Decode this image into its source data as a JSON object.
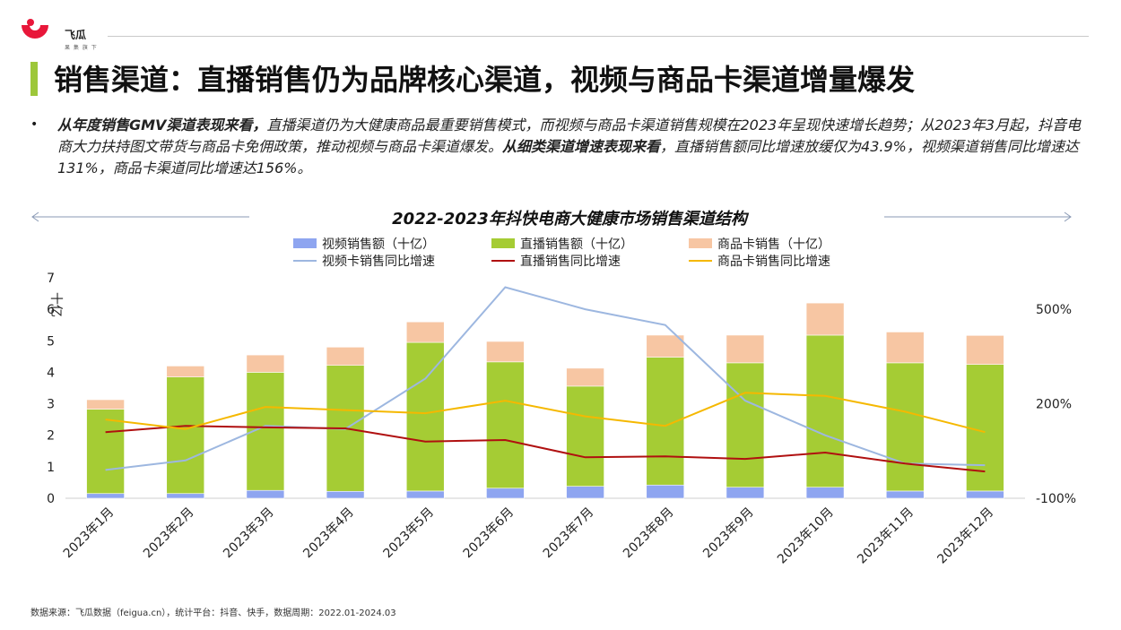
{
  "brand": {
    "name": "飞瓜",
    "sub": "果 集 旗 下"
  },
  "slide_title": "销售渠道：直播销售仍为品牌核心渠道，视频与商品卡渠道增量爆发",
  "bullet": "•",
  "paragraph": {
    "part1_bold": "从年度销售GMV渠道表现来看，",
    "part1": "直播渠道仍为大健康商品最重要销售模式，而视频与商品卡渠道销售规模在2023年呈现快速增长趋势；从2023年3月起，抖音电商大力扶持图文带货与商品卡免佣政策，推动视频与商品卡渠道爆发。",
    "part2_bold": "从细类渠道增速表现来看",
    "part2": "，直播销售额同比增速放缓仅为43.9%，视频渠道销售同比增速达131%，商品卡渠道同比增速达156%。"
  },
  "chart_data": {
    "type": "bar",
    "title": "2022-2023年抖快电商大健康市场销售渠道结构",
    "ylabel": "十亿",
    "ylim": [
      0,
      7
    ],
    "y_ticks": [
      "0",
      "1",
      "2",
      "3",
      "4",
      "5",
      "6",
      "7"
    ],
    "y2lim": [
      -100,
      600
    ],
    "y2_ticks": [
      "-100%",
      "200%",
      "500%"
    ],
    "grid": false,
    "legend_position": "top",
    "categories": [
      "2023年1月",
      "2023年2月",
      "2023年3月",
      "2023年4月",
      "2023年5月",
      "2023年6月",
      "2023年7月",
      "2023年8月",
      "2023年9月",
      "2023年10月",
      "2023年11月",
      "2023年12月"
    ],
    "bar_series": [
      {
        "name": "视频销售额（十亿）",
        "color": "#8ea5f0",
        "values": [
          0.15,
          0.15,
          0.25,
          0.22,
          0.23,
          0.32,
          0.38,
          0.42,
          0.35,
          0.35,
          0.23,
          0.23
        ]
      },
      {
        "name": "直播销售额（十亿）",
        "color": "#a5cc34",
        "values": [
          2.68,
          3.7,
          3.75,
          4.0,
          4.72,
          4.01,
          3.18,
          4.06,
          3.95,
          4.83,
          4.07,
          4.02
        ]
      },
      {
        "name": "商品卡销售（十亿）",
        "color": "#f7c6a3",
        "values": [
          0.3,
          0.35,
          0.55,
          0.58,
          0.65,
          0.65,
          0.57,
          0.7,
          0.88,
          1.02,
          0.98,
          0.92
        ]
      }
    ],
    "line_series": [
      {
        "name": "视频卡销售同比增速",
        "color": "#9db7e0",
        "values": [
          -10,
          20,
          130,
          120,
          280,
          570,
          500,
          450,
          210,
          100,
          10,
          5
        ]
      },
      {
        "name": "直播销售同比增速",
        "color": "#b01010",
        "values": [
          110,
          130,
          125,
          122,
          80,
          85,
          30,
          33,
          25,
          45,
          10,
          -15
        ]
      },
      {
        "name": "商品卡销售同比增速",
        "color": "#f5b800",
        "values": [
          150,
          120,
          190,
          180,
          170,
          210,
          160,
          130,
          235,
          225,
          175,
          110
        ]
      }
    ]
  },
  "footer": "数据来源：飞瓜数据（feigua.cn），统计平台：抖音、快手，数据周期：2022.01-2024.03"
}
